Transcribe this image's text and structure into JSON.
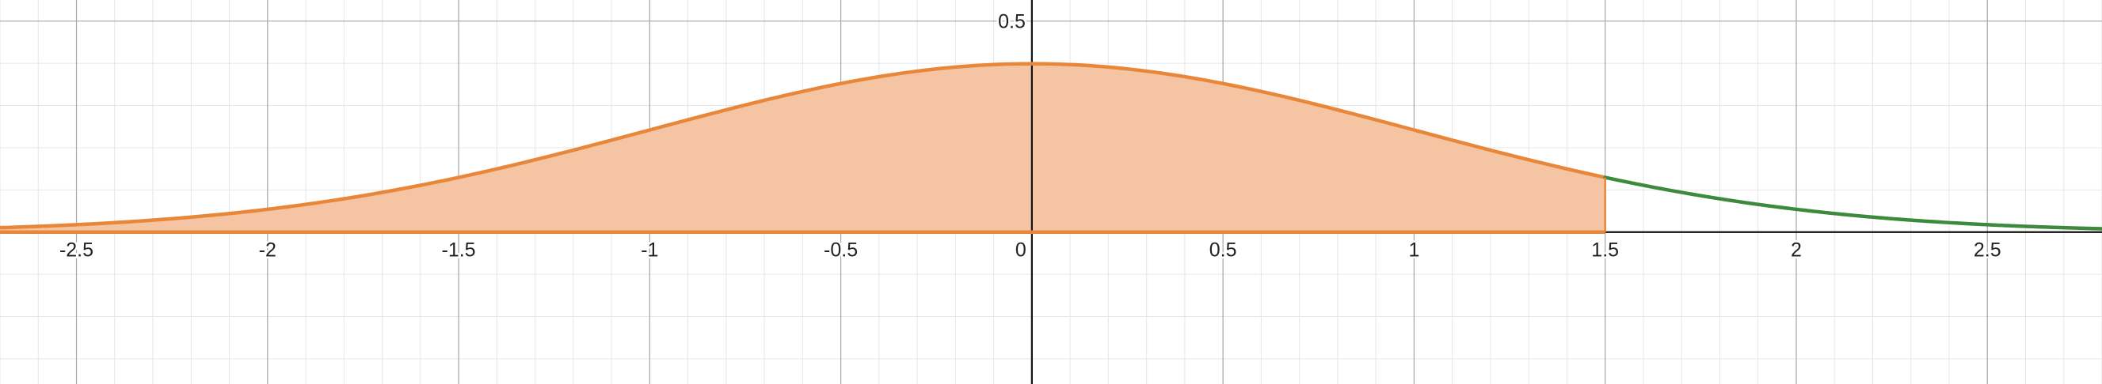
{
  "colors": {
    "background": "#ffffff",
    "minor_grid": "#e6e6e6",
    "major_grid": "#a6a6a6",
    "axis": "#111111",
    "shaded_curve": "#e8873a",
    "shaded_fill": "#f5c5a3",
    "unshaded_curve": "#3d8a3d",
    "tick_text": "#222222"
  },
  "chart_data": {
    "type": "area",
    "title": "",
    "xlabel": "",
    "ylabel": "",
    "grid": true,
    "function": "standard normal probability density",
    "xlim": [
      -2.7,
      2.8
    ],
    "ylim": [
      -0.36,
      0.55
    ],
    "x_ticks": [
      {
        "value": -2.5,
        "label": "-2.5"
      },
      {
        "value": -2,
        "label": "-2"
      },
      {
        "value": -1.5,
        "label": "-1.5"
      },
      {
        "value": -1,
        "label": "-1"
      },
      {
        "value": -0.5,
        "label": "-0.5"
      },
      {
        "value": 0,
        "label": "0"
      },
      {
        "value": 0.5,
        "label": "0.5"
      },
      {
        "value": 1,
        "label": "1"
      },
      {
        "value": 1.5,
        "label": "1.5"
      },
      {
        "value": 2,
        "label": "2"
      },
      {
        "value": 2.5,
        "label": "2.5"
      }
    ],
    "y_ticks": [
      {
        "value": 0.5,
        "label": "0.5"
      }
    ],
    "shaded_region": {
      "from": -2.7,
      "to": 1.5
    },
    "series": [
      {
        "color": "#e8873a",
        "shaded": true,
        "x": [
          -2.7,
          -2.5,
          -2.0,
          -1.5,
          -1.0,
          -0.5,
          0.0,
          0.5,
          1.0,
          1.5
        ],
        "y": [
          0.0104,
          0.0175,
          0.054,
          0.1295,
          0.242,
          0.3521,
          0.3989,
          0.3521,
          0.242,
          0.1295
        ]
      },
      {
        "color": "#3d8a3d",
        "shaded": false,
        "x": [
          1.5,
          2.0,
          2.5,
          2.8
        ],
        "y": [
          0.1295,
          0.054,
          0.0175,
          0.0079
        ]
      }
    ]
  }
}
